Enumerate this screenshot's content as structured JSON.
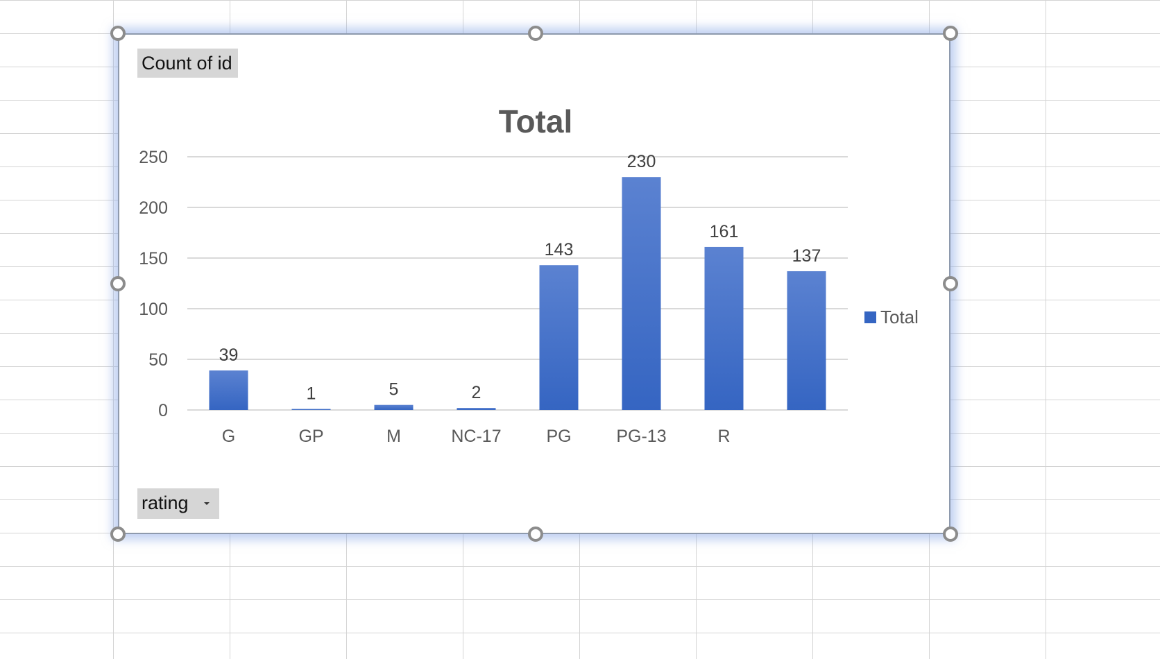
{
  "pivot": {
    "value_field_label": "Count of id",
    "axis_field_label": "rating"
  },
  "colors": {
    "bar_top": "#5b82d1",
    "bar_bottom": "#3565c2",
    "gridline": "#d9d9d9",
    "axis_text": "#595959",
    "label_text": "#404040"
  },
  "chart_data": {
    "type": "bar",
    "title": "Total",
    "xlabel": "",
    "ylabel": "",
    "ylim": [
      0,
      250
    ],
    "yticks": [
      0,
      50,
      100,
      150,
      200,
      250
    ],
    "categories": [
      "G",
      "GP",
      "M",
      "NC-17",
      "PG",
      "PG-13",
      "R",
      ""
    ],
    "series": [
      {
        "name": "Total",
        "values": [
          39,
          1,
          5,
          2,
          143,
          230,
          161,
          137
        ]
      }
    ],
    "data_labels": true,
    "grid": true,
    "legend": "right"
  }
}
